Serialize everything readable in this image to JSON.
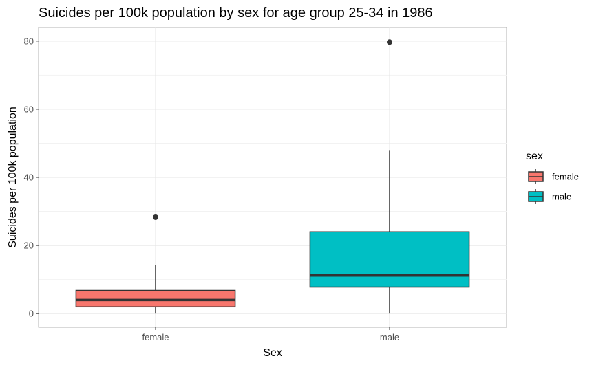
{
  "chart_data": {
    "type": "boxplot",
    "title": "Suicides per 100k population by sex for age group 25-34 in 1986",
    "xlabel": "Sex",
    "ylabel": "Suicides per 100k population",
    "categories": [
      "female",
      "male"
    ],
    "ylim": [
      -4,
      84
    ],
    "yticks": [
      0,
      20,
      40,
      60,
      80
    ],
    "ytick_labels": [
      "0",
      "20",
      "40",
      "60",
      "80"
    ],
    "grid": true,
    "boxes": [
      {
        "category": "female",
        "whisker_low": 0,
        "q1": 2,
        "median": 4,
        "q3": 6.8,
        "whisker_high": 14.2,
        "outliers": [
          28.3
        ],
        "color": "#F8766D"
      },
      {
        "category": "male",
        "whisker_low": 0,
        "q1": 7.8,
        "median": 11.2,
        "q3": 24,
        "whisker_high": 48,
        "outliers": [
          79.7
        ],
        "color": "#00BFC4"
      }
    ],
    "legend": {
      "title": "sex",
      "position": "right",
      "entries": [
        {
          "label": "female",
          "color": "#F8766D"
        },
        {
          "label": "male",
          "color": "#00BFC4"
        }
      ]
    }
  }
}
